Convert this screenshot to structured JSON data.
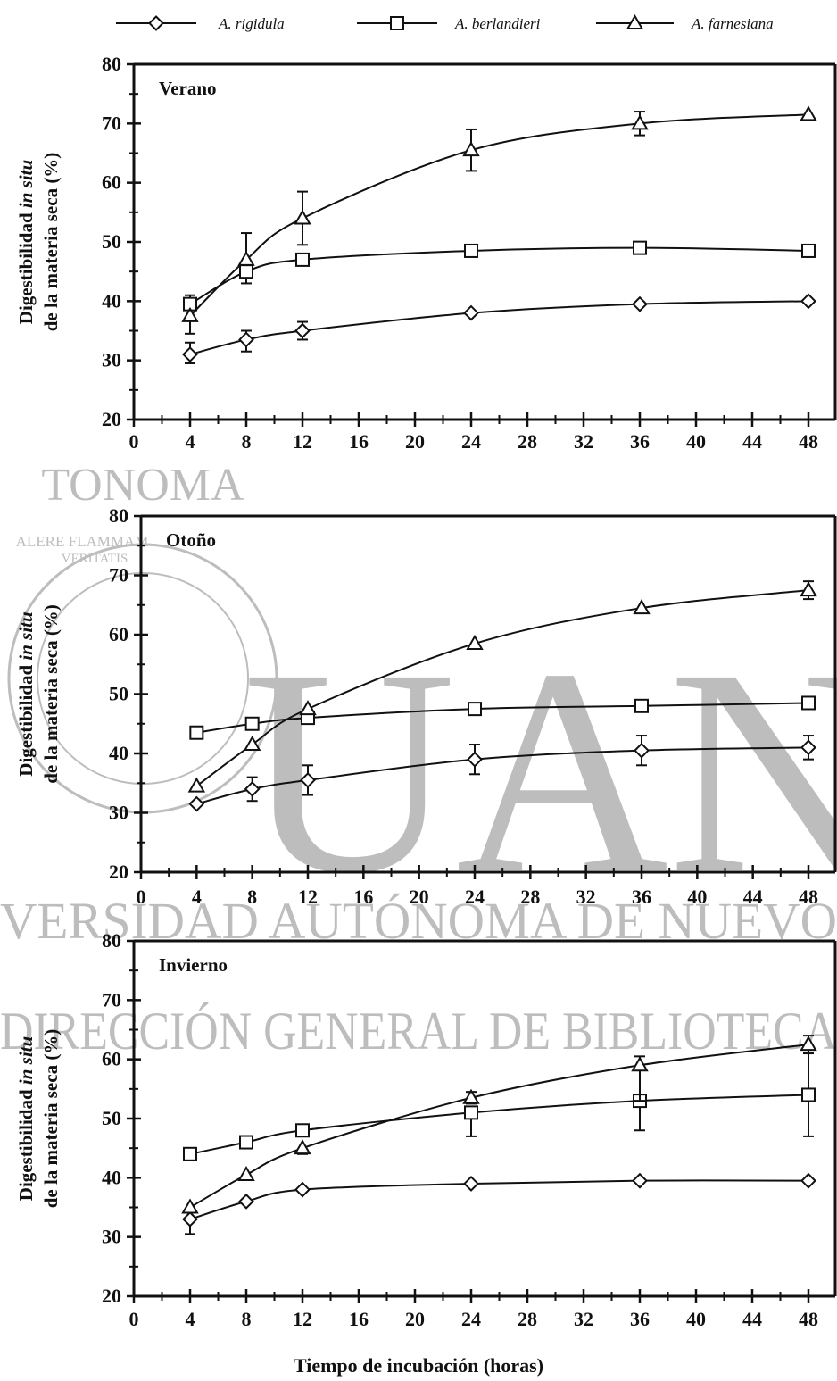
{
  "legend": [
    {
      "name": "A. rigidula",
      "marker": "diamond"
    },
    {
      "name": "A. berlandieri",
      "marker": "square"
    },
    {
      "name": "A. farnesiana",
      "marker": "triangle"
    }
  ],
  "xlabel": "Tiempo de incubación (horas)",
  "ylabel_line1_prefix": "Digestibilidad ",
  "ylabel_line1_italic": "in situ",
  "ylabel_line2": "de la materia seca (%)",
  "watermark": {
    "big": "UAN",
    "line1": "VERSIDAD AUTÓNOMA DE NUEVO",
    "line2": "DIRECCIÓN GENERAL DE BIBLIOTECA",
    "seal_top": "TONOMA",
    "seal_motto1": "ALERE FLAMMAM",
    "seal_motto2": "VERITATIS"
  },
  "colors": {
    "ink": "#111111",
    "watermark": "#bdbdbd"
  },
  "chart_data": [
    {
      "type": "line",
      "title": "Verano",
      "x": [
        4,
        8,
        12,
        24,
        36,
        48
      ],
      "xticks": [
        0,
        4,
        8,
        12,
        16,
        20,
        24,
        28,
        32,
        36,
        40,
        44,
        48
      ],
      "xlim": [
        0,
        48
      ],
      "ylim": [
        20,
        80
      ],
      "yticks": [
        20,
        30,
        40,
        50,
        60,
        70,
        80
      ],
      "series": [
        {
          "name": "A. rigidula",
          "values": [
            31,
            33.5,
            35,
            38,
            39.5,
            40
          ],
          "err_up": [
            2,
            1.5,
            1.5,
            0,
            0,
            0
          ],
          "err_down": [
            1.5,
            2,
            1.5,
            0,
            0,
            0
          ]
        },
        {
          "name": "A. berlandieri",
          "values": [
            39.5,
            45,
            47,
            48.5,
            49,
            48.5
          ],
          "err_up": [
            1.5,
            0,
            1,
            0,
            1,
            1
          ],
          "err_down": [
            0,
            2,
            1,
            0,
            1,
            1
          ]
        },
        {
          "name": "A. farnesiana",
          "values": [
            37.5,
            47,
            54,
            65.5,
            70,
            71.5
          ],
          "err_up": [
            0,
            4.5,
            4.5,
            3.5,
            2,
            0
          ],
          "err_down": [
            3,
            0,
            4.5,
            3.5,
            2,
            0
          ]
        }
      ]
    },
    {
      "type": "line",
      "title": "Otoño",
      "x": [
        4,
        8,
        12,
        24,
        36,
        48
      ],
      "xticks": [
        0,
        4,
        8,
        12,
        16,
        20,
        24,
        28,
        32,
        36,
        40,
        44,
        48
      ],
      "xlim": [
        0,
        48
      ],
      "ylim": [
        20,
        80
      ],
      "yticks": [
        20,
        30,
        40,
        50,
        60,
        70,
        80
      ],
      "series": [
        {
          "name": "A. rigidula",
          "values": [
            31.5,
            34,
            35.5,
            39,
            40.5,
            41
          ],
          "err_up": [
            0,
            2,
            2.5,
            2.5,
            2.5,
            2
          ],
          "err_down": [
            0,
            2,
            2.5,
            2.5,
            2.5,
            2
          ]
        },
        {
          "name": "A. berlandieri",
          "values": [
            43.5,
            45,
            46,
            47.5,
            48,
            48.5
          ],
          "err_up": [
            1,
            1,
            1,
            0,
            0,
            0
          ],
          "err_down": [
            1,
            1,
            1,
            0,
            0,
            0
          ]
        },
        {
          "name": "A. farnesiana",
          "values": [
            34.5,
            41.5,
            47.5,
            58.5,
            64.5,
            67.5
          ],
          "err_up": [
            0,
            0,
            0,
            0,
            0,
            1.5
          ],
          "err_down": [
            0,
            0,
            0,
            0,
            0,
            1.5
          ]
        }
      ]
    },
    {
      "type": "line",
      "title": "Invierno",
      "x": [
        4,
        8,
        12,
        24,
        36,
        48
      ],
      "xticks": [
        0,
        4,
        8,
        12,
        16,
        20,
        24,
        28,
        32,
        36,
        40,
        44,
        48
      ],
      "xlim": [
        0,
        48
      ],
      "ylim": [
        20,
        80
      ],
      "yticks": [
        20,
        30,
        40,
        50,
        60,
        70,
        80
      ],
      "series": [
        {
          "name": "A. rigidula",
          "values": [
            33,
            36,
            38,
            39,
            39.5,
            39.5
          ],
          "err_up": [
            0,
            0,
            0,
            0,
            0,
            0
          ],
          "err_down": [
            2.5,
            0,
            0,
            0,
            0,
            0
          ]
        },
        {
          "name": "A. berlandieri",
          "values": [
            44,
            46,
            48,
            51,
            53,
            54
          ],
          "err_up": [
            0,
            0,
            1,
            0,
            0,
            7
          ],
          "err_down": [
            0,
            0,
            0,
            4,
            5,
            7
          ]
        },
        {
          "name": "A. farnesiana",
          "values": [
            35,
            40.5,
            45,
            53.5,
            59,
            62.5
          ],
          "err_up": [
            0,
            0,
            0,
            1,
            1.5,
            1.5
          ],
          "err_down": [
            0,
            0,
            1,
            1,
            6,
            1.5
          ]
        }
      ]
    }
  ]
}
